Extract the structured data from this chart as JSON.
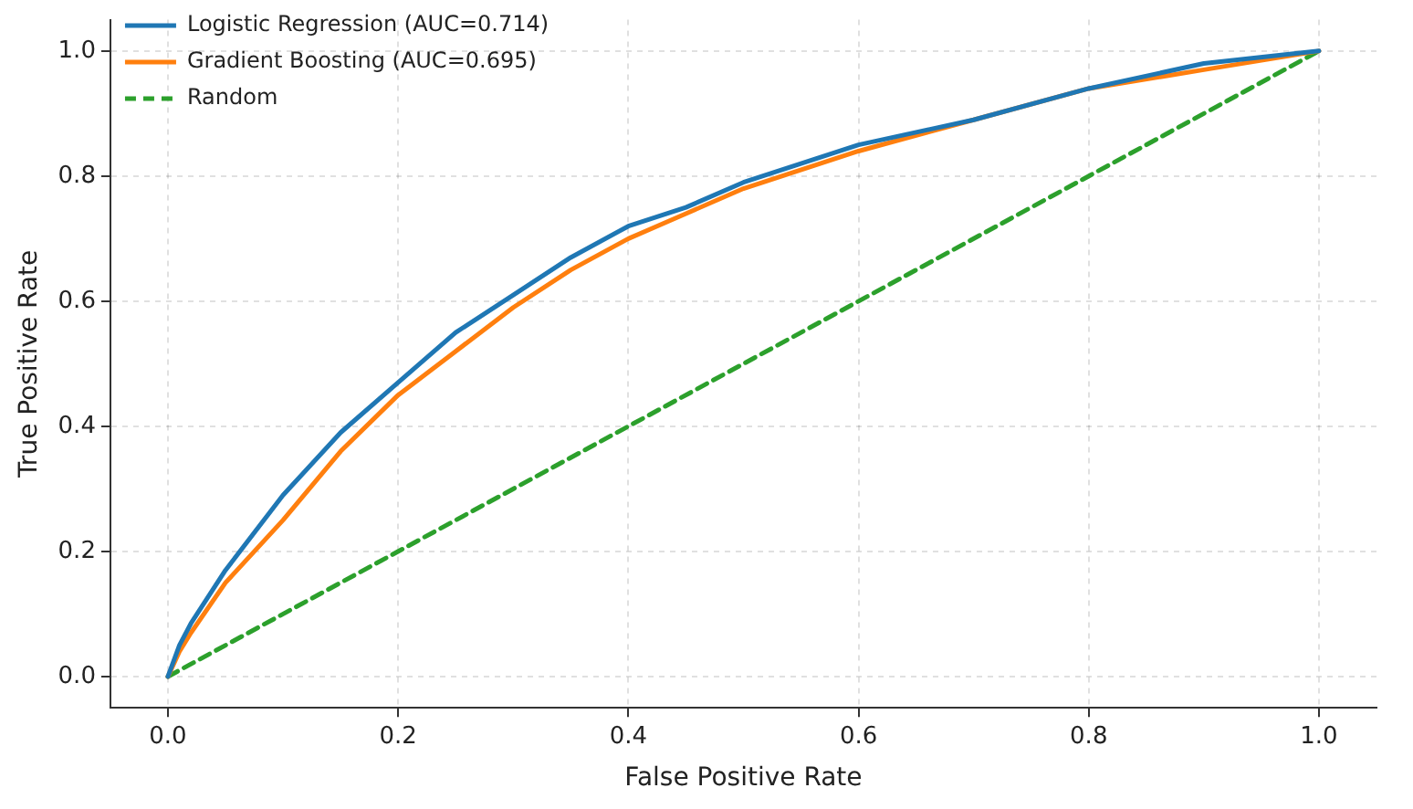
{
  "chart_data": {
    "type": "line",
    "xlabel": "False Positive Rate",
    "ylabel": "True Positive Rate",
    "xlim": [
      -0.05,
      1.05
    ],
    "ylim": [
      -0.05,
      1.05
    ],
    "xticks": [
      {
        "value": 0,
        "label": "0.0"
      },
      0.2,
      0.4,
      0.6,
      0.8,
      {
        "value": 1,
        "label": "1.0"
      }
    ],
    "yticks": [
      {
        "value": 0,
        "label": "0.0"
      },
      0.2,
      0.4,
      0.6,
      0.8,
      {
        "value": 1,
        "label": "1.0"
      }
    ],
    "grid": true,
    "legend": "top left",
    "series": [
      {
        "name": "Logistic Regression (AUC=0.714)",
        "color": "#1f77b4",
        "x": [
          0,
          0.01,
          0.02,
          0.05,
          0.1,
          0.15,
          0.2,
          0.25,
          0.3,
          0.35,
          0.4,
          0.45,
          0.5,
          0.6,
          0.7,
          0.8,
          0.9,
          1
        ],
        "values": [
          0,
          0.05,
          0.085,
          0.17,
          0.29,
          0.39,
          0.47,
          0.55,
          0.61,
          0.67,
          0.72,
          0.75,
          0.79,
          0.85,
          0.89,
          0.94,
          0.98,
          1
        ]
      },
      {
        "name": "Gradient Boosting (AUC=0.695)",
        "color": "#ff7f0e",
        "x": [
          0,
          0.01,
          0.02,
          0.05,
          0.1,
          0.15,
          0.2,
          0.25,
          0.3,
          0.35,
          0.4,
          0.45,
          0.5,
          0.6,
          0.7,
          0.8,
          0.9,
          1
        ],
        "values": [
          0,
          0.04,
          0.07,
          0.15,
          0.25,
          0.36,
          0.45,
          0.52,
          0.59,
          0.65,
          0.7,
          0.74,
          0.78,
          0.84,
          0.89,
          0.94,
          0.97,
          1
        ]
      },
      {
        "name": "Random",
        "color": "#2ca02c",
        "line_style": "dashed",
        "x": [
          0,
          1
        ],
        "values": [
          0,
          1
        ]
      }
    ]
  }
}
